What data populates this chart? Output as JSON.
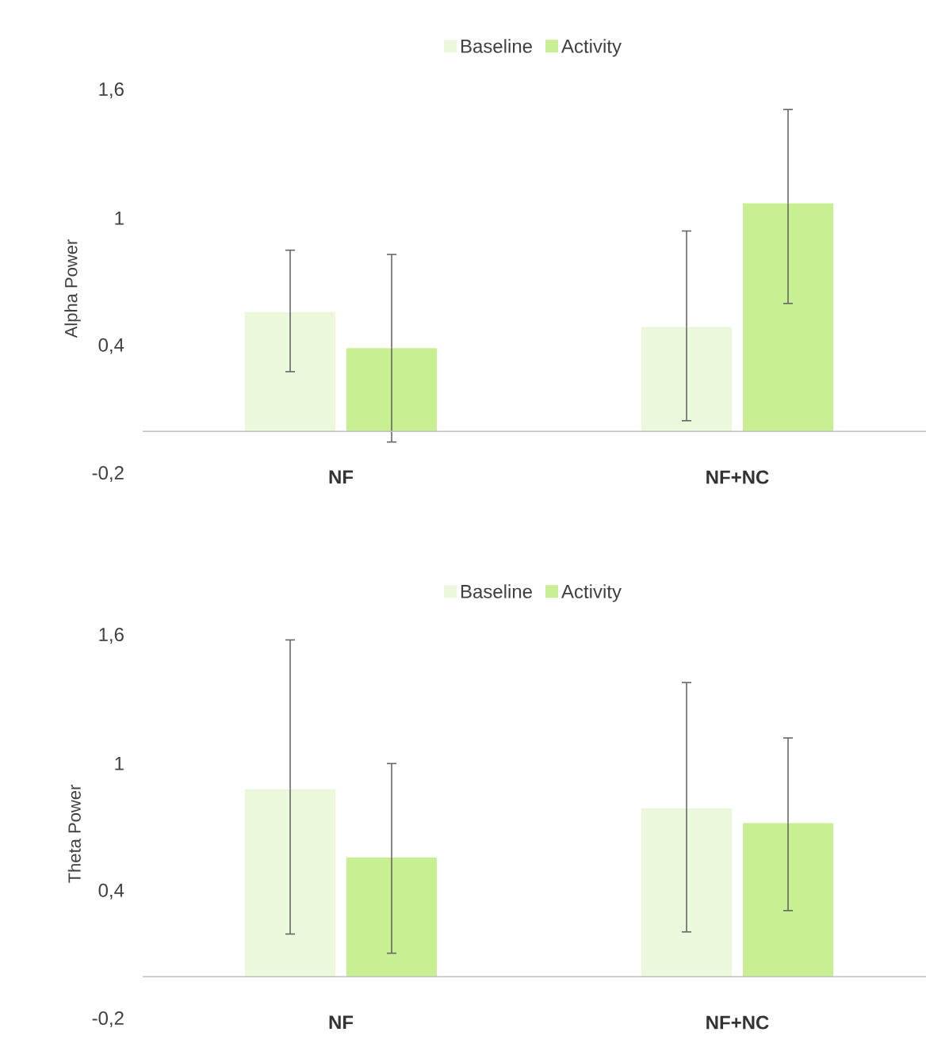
{
  "chart_data": [
    {
      "type": "bar",
      "ylabel": "Alpha Power",
      "categories": [
        "NF",
        "NF+NC"
      ],
      "ylim": [
        -0.2,
        1.6
      ],
      "yticks": [
        {
          "value": -0.2,
          "label": "-0,2"
        },
        {
          "value": 0.4,
          "label": "0,4"
        },
        1,
        {
          "value": 1.6,
          "label": "1,6"
        }
      ],
      "legend": "top",
      "grid": false,
      "series": [
        {
          "name": "Baseline",
          "color": "#ebf8db",
          "values": [
            0.56,
            0.49
          ],
          "errors": [
            [
              0.28,
              0.85
            ],
            [
              0.05,
              0.94
            ]
          ]
        },
        {
          "name": "Activity",
          "color": "#c8f093",
          "values": [
            0.39,
            1.07
          ],
          "errors": [
            [
              -0.05,
              0.83
            ],
            [
              0.6,
              1.51
            ]
          ]
        }
      ]
    },
    {
      "type": "bar",
      "ylabel": "Theta Power",
      "categories": [
        "NF",
        "NF+NC"
      ],
      "ylim": [
        -0.2,
        1.6
      ],
      "yticks": [
        {
          "value": -0.2,
          "label": "-0,2"
        },
        {
          "value": 0.4,
          "label": "0,4"
        },
        1,
        {
          "value": 1.6,
          "label": "1,6"
        }
      ],
      "legend": "top",
      "grid": false,
      "series": [
        {
          "name": "Baseline",
          "color": "#ebf8db",
          "values": [
            0.88,
            0.79
          ],
          "errors": [
            [
              0.2,
              1.58
            ],
            [
              0.21,
              1.38
            ]
          ]
        },
        {
          "name": "Activity",
          "color": "#c8f093",
          "values": [
            0.56,
            0.72
          ],
          "errors": [
            [
              0.11,
              1.0
            ],
            [
              0.31,
              1.12
            ]
          ]
        }
      ]
    }
  ]
}
